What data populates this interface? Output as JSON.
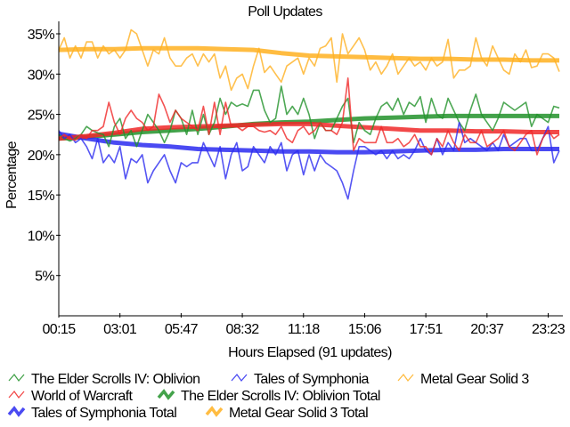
{
  "chart_data": {
    "type": "line",
    "title": "Poll Updates",
    "xlabel": "Hours Elapsed (91 updates)",
    "ylabel": "Percentage",
    "ylim": [
      0,
      35
    ],
    "xlim": [
      0,
      90
    ],
    "grid": false,
    "legend_placement": "bottom",
    "x_tick_labels": [
      {
        "index": 0,
        "label": "00:15"
      },
      {
        "index": 11,
        "label": "03:01"
      },
      {
        "index": 22,
        "label": "05:47"
      },
      {
        "index": 33,
        "label": "08:32"
      },
      {
        "index": 44,
        "label": "11:18"
      },
      {
        "index": 55,
        "label": "15:06"
      },
      {
        "index": 66,
        "label": "17:51"
      },
      {
        "index": 77,
        "label": "20:37"
      },
      {
        "index": 88,
        "label": "23:23"
      }
    ],
    "y_ticks": [
      {
        "value": 5,
        "label": "5%"
      },
      {
        "value": 10,
        "label": "10%"
      },
      {
        "value": 15,
        "label": "15%"
      },
      {
        "value": 20,
        "label": "20%"
      },
      {
        "value": 25,
        "label": "25%"
      },
      {
        "value": 30,
        "label": "30%"
      },
      {
        "value": 35,
        "label": "35%"
      }
    ],
    "series": [
      {
        "name": "The Elder Scrolls IV: Oblivion",
        "color": "#22922a",
        "style": "thin",
        "step": 1,
        "values": [
          22.5,
          22,
          21.7,
          22,
          22.5,
          23.5,
          23,
          22.7,
          22.5,
          21,
          23.5,
          24.5,
          22,
          23,
          21,
          23,
          25,
          24,
          23,
          21.5,
          23,
          25.5,
          24.5,
          22.5,
          25.5,
          22.5,
          25,
          22.5,
          24,
          27,
          25,
          26.5,
          26,
          26.3,
          26,
          28,
          28,
          25.5,
          24,
          24.5,
          28.5,
          25,
          26,
          25,
          27,
          25,
          22,
          24,
          23,
          23,
          24.5,
          26,
          27,
          21.5,
          24,
          23,
          22.5,
          24.5,
          26,
          26.5,
          25.5,
          27,
          25,
          26.5,
          26,
          27.2,
          24,
          27,
          25,
          24.5,
          27,
          25.5,
          24,
          23,
          25.5,
          27.5,
          25,
          24,
          23,
          24.5,
          26.5,
          26,
          25.5,
          26,
          26.5,
          23.5,
          25,
          24.5,
          24,
          26,
          25.8
        ]
      },
      {
        "name": "Tales of Symphonia",
        "color": "#2a2af0",
        "style": "thin",
        "step": 1,
        "values": [
          23,
          22,
          22.5,
          21.5,
          22,
          21,
          19.5,
          22,
          19,
          20,
          19,
          21,
          17,
          19.5,
          19,
          20,
          16.5,
          18,
          19,
          20,
          18,
          16.5,
          19,
          18.5,
          19,
          19,
          21.5,
          20,
          18.5,
          21,
          17,
          20,
          21.5,
          18,
          18.5,
          21,
          20,
          19,
          21,
          20,
          21.5,
          18,
          20,
          20.5,
          17.5,
          20,
          18,
          20,
          19,
          18.5,
          18,
          16.5,
          14.5,
          18,
          21,
          21,
          20.5,
          20,
          20.5,
          19.5,
          20.5,
          19.5,
          20,
          19.5,
          20.5,
          22,
          20.5,
          20,
          22,
          20,
          21.5,
          20.5,
          24,
          21.5,
          22,
          21.5,
          21,
          20.5,
          21.5,
          20.5,
          22.5,
          21,
          21.5,
          22,
          22,
          20.5,
          20.5,
          22,
          23.5,
          19,
          20.5
        ]
      },
      {
        "name": "Metal Gear Solid 3",
        "color": "#ffb020",
        "style": "thin",
        "step": 1,
        "values": [
          33,
          34.5,
          32,
          33.5,
          32,
          34,
          34,
          32,
          33.5,
          32.5,
          33,
          32,
          33,
          35.5,
          35,
          33,
          31,
          33,
          32.5,
          34.5,
          32,
          31,
          31,
          32,
          32.5,
          31,
          32.5,
          31.5,
          32.5,
          29.5,
          31,
          28,
          29.5,
          30,
          28.2,
          31,
          33.2,
          30.2,
          31,
          30,
          29,
          31,
          31.5,
          32,
          30,
          32,
          31,
          33.2,
          33.5,
          34.5,
          29,
          35,
          32.5,
          33.5,
          34.5,
          33,
          30.5,
          31.5,
          30,
          31,
          32.5,
          30,
          31,
          32,
          31,
          31.5,
          30.5,
          32,
          31,
          31.5,
          34.3,
          29.5,
          30.5,
          30.5,
          31,
          34.5,
          32,
          31,
          33.5,
          32,
          30.5,
          30,
          32.5,
          31.5,
          33,
          30.8,
          31,
          32.5,
          32.5,
          32,
          30.3
        ]
      },
      {
        "name": "World of Warcraft",
        "color": "#f02828",
        "style": "thin",
        "step": 1,
        "values": [
          22,
          22.5,
          22,
          21.8,
          22.5,
          22,
          23,
          23,
          23.5,
          26.5,
          24,
          22.5,
          24.5,
          25.5,
          24.5,
          24,
          23,
          23.5,
          27.5,
          26,
          24,
          25.5,
          24.5,
          24,
          23.5,
          23,
          26,
          22.5,
          26.5,
          22.5,
          26.5,
          23.5,
          23.5,
          23,
          23.5,
          23.5,
          23,
          22.8,
          23,
          22.5,
          23.5,
          22,
          21.5,
          23,
          23.5,
          22.5,
          23,
          24,
          23,
          23,
          22.5,
          24,
          29.5,
          20.5,
          22,
          21.5,
          21.5,
          21.5,
          23.5,
          21.5,
          21.5,
          22,
          21,
          21.5,
          22.5,
          21,
          21,
          20,
          22,
          21,
          23,
          21.5,
          20.5,
          22.5,
          21.5,
          21.5,
          23,
          21,
          21.5,
          22,
          23,
          21,
          20.5,
          21.5,
          22.5,
          23,
          20,
          22,
          23,
          22,
          22.5
        ]
      },
      {
        "name": "The Elder Scrolls IV: Oblivion Total",
        "color": "#22922a",
        "style": "thick",
        "step": 5,
        "values": [
          22,
          22.2,
          22.5,
          22.8,
          23,
          23.2,
          23.5,
          23.8,
          24,
          24.1,
          24.3,
          24.5,
          24.6,
          24.7,
          24.8,
          24.8,
          24.8,
          24.8,
          24.8
        ]
      },
      {
        "name": "Tales of Symphonia Total",
        "color": "#2a2af0",
        "style": "thick",
        "step": 5,
        "values": [
          22.6,
          22,
          21.5,
          21.2,
          21,
          20.7,
          20.6,
          20.5,
          20.4,
          20.4,
          20.3,
          20.3,
          20.4,
          20.5,
          20.6,
          20.6,
          20.7,
          20.7,
          20.7
        ]
      },
      {
        "name": "Metal Gear Solid 3 Total",
        "color": "#ffb020",
        "style": "thick",
        "step": 5,
        "values": [
          33,
          33.1,
          33.1,
          33.2,
          33.2,
          33.2,
          33.1,
          33,
          32.6,
          32.3,
          32.2,
          32.1,
          32,
          31.9,
          31.9,
          31.8,
          31.8,
          31.7,
          31.7
        ]
      },
      {
        "name": "World of Warcraft Total",
        "color": "#f02828",
        "style": "thick",
        "step": 5,
        "in_legend": false,
        "values": [
          22,
          22.3,
          22.7,
          23.2,
          23.4,
          23.5,
          23.6,
          23.7,
          23.8,
          23.8,
          23.6,
          23.4,
          23.2,
          23,
          23,
          22.9,
          22.9,
          22.8,
          22.8
        ]
      }
    ],
    "legend": [
      {
        "label": "The Elder Scrolls IV: Oblivion",
        "color": "#22922a",
        "style": "thin"
      },
      {
        "label": "Tales of Symphonia",
        "color": "#2a2af0",
        "style": "thin"
      },
      {
        "label": "Metal Gear Solid 3",
        "color": "#ffb020",
        "style": "thin"
      },
      {
        "label": "World of Warcraft",
        "color": "#f02828",
        "style": "thin"
      },
      {
        "label": "The Elder Scrolls IV: Oblivion Total",
        "color": "#22922a",
        "style": "thick"
      },
      {
        "label": "Tales of Symphonia Total",
        "color": "#2a2af0",
        "style": "thick"
      },
      {
        "label": "Metal Gear Solid 3 Total",
        "color": "#ffb020",
        "style": "thick"
      }
    ]
  }
}
